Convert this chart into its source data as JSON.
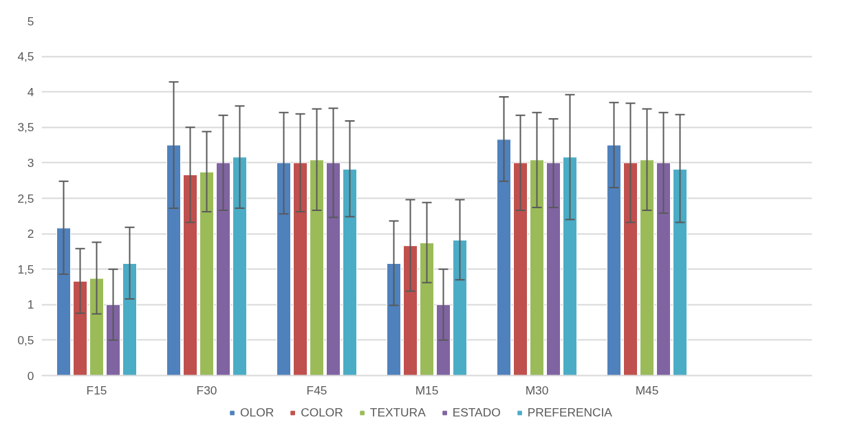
{
  "chart_data": {
    "type": "bar",
    "categories": [
      "F15",
      "F30",
      "F45",
      "M15",
      "M30",
      "M45",
      null
    ],
    "series": [
      {
        "name": "OLOR",
        "color": "#4f81bd",
        "values": [
          2.08,
          3.25,
          3.0,
          1.58,
          3.33,
          3.25,
          null
        ],
        "errors": [
          [
            1.43,
            2.74
          ],
          [
            2.36,
            4.14
          ],
          [
            2.28,
            3.71
          ],
          [
            0.99,
            2.18
          ],
          [
            2.74,
            3.93
          ],
          [
            2.65,
            3.85
          ],
          null
        ]
      },
      {
        "name": "COLOR",
        "color": "#c0504d",
        "values": [
          1.33,
          2.83,
          3.0,
          1.83,
          3.0,
          3.0,
          null
        ],
        "errors": [
          [
            0.88,
            1.79
          ],
          [
            2.16,
            3.5
          ],
          [
            2.31,
            3.69
          ],
          [
            1.19,
            2.48
          ],
          [
            2.33,
            3.67
          ],
          [
            2.16,
            3.84
          ],
          null
        ]
      },
      {
        "name": "TEXTURA",
        "color": "#9bbb59",
        "values": [
          1.37,
          2.87,
          3.04,
          1.87,
          3.04,
          3.04,
          null
        ],
        "errors": [
          [
            0.87,
            1.88
          ],
          [
            2.31,
            3.44
          ],
          [
            2.33,
            3.76
          ],
          [
            1.31,
            2.44
          ],
          [
            2.37,
            3.71
          ],
          [
            2.33,
            3.76
          ],
          null
        ]
      },
      {
        "name": "ESTADO",
        "color": "#8064a2",
        "values": [
          1.0,
          3.0,
          3.0,
          1.0,
          3.0,
          3.0,
          null
        ],
        "errors": [
          [
            0.5,
            1.5
          ],
          [
            2.33,
            3.67
          ],
          [
            2.23,
            3.77
          ],
          [
            0.5,
            1.5
          ],
          [
            2.37,
            3.62
          ],
          [
            2.29,
            3.71
          ],
          null
        ]
      },
      {
        "name": "PREFERENCIA",
        "color": "#4bacc6",
        "values": [
          1.58,
          3.08,
          2.91,
          1.91,
          3.08,
          2.91,
          null
        ],
        "errors": [
          [
            1.08,
            2.09
          ],
          [
            2.36,
            3.8
          ],
          [
            2.24,
            3.59
          ],
          [
            1.35,
            2.48
          ],
          [
            2.2,
            3.96
          ],
          [
            2.16,
            3.68
          ],
          null
        ]
      }
    ],
    "ylim": [
      0,
      5
    ],
    "yticks": [
      0,
      {
        "value": 0.5,
        "label": "0,5"
      },
      1,
      {
        "value": 1.5,
        "label": "1,5"
      },
      2,
      {
        "value": 2.5,
        "label": "2,5"
      },
      3,
      {
        "value": 3.5,
        "label": "3,5"
      },
      4,
      {
        "value": 4.5,
        "label": "4,5"
      },
      5
    ],
    "grid": "y",
    "legend": "bottom"
  }
}
